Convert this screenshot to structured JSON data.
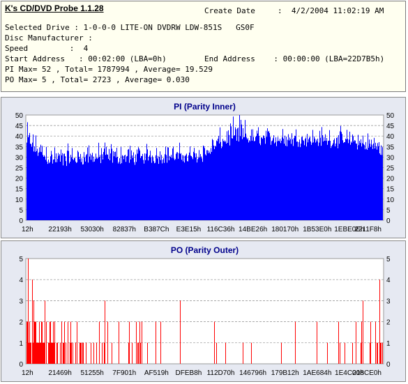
{
  "app": {
    "title": "K's CD/DVD Probe 1.1.28",
    "create_date_label": "Create Date",
    "create_date_value": ":  4/2/2004 11:02:19 AM"
  },
  "info": {
    "drive_line": "Selected Drive : 1-0-0-0 LITE-ON DVDRW LDW-851S   GS0F",
    "manufacturer_line": "Disc Manufacturer :",
    "speed_line": "Speed         :  4",
    "start_address_line": "Start Address   : 00:02:00 (LBA=0h)",
    "end_address_line": "End Address    : 00:00:00 (LBA=22D7B5h)",
    "pi_line": "PI Max= 52 , Total= 1787994 , Average= 19.529",
    "po_line": "PO Max= 5 , Total= 2723 , Average= 0.030"
  },
  "colors": {
    "pi_bars": "#0000ff",
    "po_bars": "#ff0000",
    "title_text": "#00008b",
    "plot_bg": "#ffffff",
    "panel_bg": "#e6e9f2"
  },
  "chart_data": [
    {
      "type": "bar",
      "title": "PI (Parity Inner)",
      "ylim": [
        0,
        50
      ],
      "yticks": [
        "0",
        "5",
        "10",
        "15",
        "20",
        "25",
        "30",
        "35",
        "40",
        "45",
        "50"
      ],
      "xticks": [
        "12h",
        "22193h",
        "53030h",
        "82837h",
        "B387Ch",
        "E3E15h",
        "116C36h",
        "14BE26h",
        "180170h",
        "1B53E0h",
        "1EBE0Eh",
        "2211F8h"
      ],
      "grid": "horizontal dashed",
      "profile_x": [
        0,
        0.02,
        0.06,
        0.12,
        0.2,
        0.3,
        0.4,
        0.45,
        0.5,
        0.52,
        0.56,
        0.6,
        0.62,
        0.7,
        0.8,
        0.9,
        0.97,
        1.0
      ],
      "profile_avg": [
        36,
        34,
        28,
        28,
        29,
        28.5,
        29.5,
        29,
        30,
        33,
        37.5,
        38.5,
        38,
        37.5,
        37,
        36.5,
        34,
        32
      ],
      "profile_max": [
        47,
        42,
        36,
        35,
        36,
        36,
        36,
        35,
        37,
        40,
        44,
        52,
        45,
        44,
        44,
        43,
        42,
        40
      ]
    },
    {
      "type": "bar",
      "title": "PO (Parity Outer)",
      "ylim": [
        0,
        5
      ],
      "yticks": [
        "0",
        "1",
        "2",
        "3",
        "4",
        "5"
      ],
      "xticks": [
        "12h",
        "21469h",
        "51255h",
        "7F901h",
        "AF519h",
        "DFEB8h",
        "112D70h",
        "146796h",
        "179B12h",
        "1AE684h",
        "1E4C00h",
        "218CE0h"
      ],
      "grid": "horizontal dashed",
      "density": [
        0.85,
        0.45,
        0.22,
        0.1,
        0.06,
        0.06,
        0.05,
        0.05,
        0.05,
        0.05,
        0.06,
        0.3
      ],
      "peak_points": [
        [
          0.004,
          5
        ],
        [
          0.003,
          4
        ],
        [
          0.015,
          4
        ],
        [
          0.02,
          3
        ],
        [
          0.05,
          3
        ],
        [
          0.22,
          3
        ],
        [
          0.43,
          3
        ],
        [
          0.99,
          4
        ]
      ]
    }
  ]
}
